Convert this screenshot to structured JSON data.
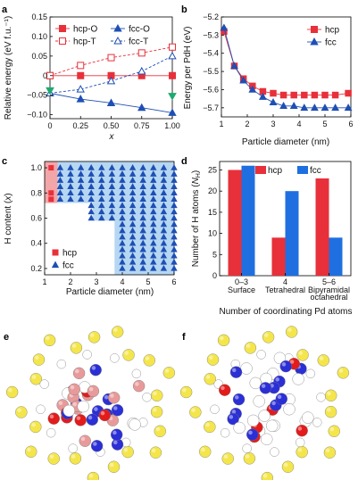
{
  "chart_data": [
    {
      "id": "a",
      "type": "line",
      "panel_label": "a",
      "xlabel": "x",
      "ylabel": "Relative energy (eV f.u.⁻¹)",
      "xlim": [
        0,
        1
      ],
      "ylim": [
        -0.11,
        0.15
      ],
      "xticks": [
        0,
        0.25,
        0.5,
        0.75,
        1.0
      ],
      "xtick_labels": [
        "0",
        "0.25",
        "0.50",
        "0.75",
        "1.00"
      ],
      "yticks": [
        -0.1,
        -0.05,
        0,
        0.05,
        0.1,
        0.15
      ],
      "ytick_labels": [
        "−0.10",
        "−0.05",
        "0",
        "0.05",
        "0.10",
        "0.15"
      ],
      "legend_location": "top",
      "series": [
        {
          "name": "hcp-O",
          "color": "#e8303a",
          "marker": "square",
          "filled": true,
          "line": "solid",
          "x": [
            0,
            0.25,
            0.5,
            0.75,
            1.0
          ],
          "y": [
            0,
            0,
            0,
            0,
            0
          ]
        },
        {
          "name": "hcp-T",
          "color": "#e8303a",
          "marker": "square",
          "filled": false,
          "line": "dashed",
          "x": [
            0,
            0.25,
            0.5,
            0.75,
            1.0
          ],
          "y": [
            0,
            0.026,
            0.046,
            0.058,
            0.073
          ]
        },
        {
          "name": "fcc-O",
          "color": "#1f4fb5",
          "marker": "triangle",
          "filled": true,
          "line": "solid",
          "x": [
            0,
            0.25,
            0.5,
            0.75,
            1.0
          ],
          "y": [
            -0.045,
            -0.06,
            -0.07,
            -0.082,
            -0.095
          ]
        },
        {
          "name": "fcc-T",
          "color": "#1f4fb5",
          "marker": "triangle",
          "filled": false,
          "line": "dashed",
          "x": [
            0,
            0.25,
            0.5,
            0.75,
            1.0
          ],
          "y": [
            -0.045,
            -0.035,
            -0.014,
            0.011,
            0.05
          ]
        }
      ],
      "extra_points": {
        "color": "#1eaa6e",
        "x": [
          0,
          1.0
        ],
        "y": [
          -0.038,
          -0.052
        ]
      }
    },
    {
      "id": "b",
      "type": "line",
      "panel_label": "b",
      "xlabel": "Particle diameter (nm)",
      "ylabel": "Energy per PdH (eV)",
      "xlim": [
        1,
        6
      ],
      "ylim": [
        -5.75,
        -5.2
      ],
      "xticks": [
        1,
        2,
        3,
        4,
        5,
        6
      ],
      "xtick_labels": [
        "1",
        "2",
        "3",
        "4",
        "5",
        "6"
      ],
      "yticks": [
        -5.7,
        -5.6,
        -5.5,
        -5.4,
        -5.3,
        -5.2
      ],
      "ytick_labels": [
        "−5.7",
        "−5.6",
        "−5.5",
        "−5.4",
        "−5.3",
        "−5.2"
      ],
      "legend_location": "top-right",
      "series": [
        {
          "name": "hcp",
          "color": "#e8303a",
          "marker": "square",
          "x": [
            1.1,
            1.5,
            1.85,
            2.2,
            2.6,
            3.0,
            3.4,
            3.8,
            4.2,
            4.6,
            5.0,
            5.4,
            5.9
          ],
          "y": [
            -5.28,
            -5.47,
            -5.54,
            -5.58,
            -5.61,
            -5.62,
            -5.63,
            -5.63,
            -5.63,
            -5.63,
            -5.63,
            -5.63,
            -5.62
          ]
        },
        {
          "name": "fcc",
          "color": "#1f4fb5",
          "marker": "triangle",
          "x": [
            1.1,
            1.5,
            1.85,
            2.2,
            2.6,
            3.0,
            3.4,
            3.8,
            4.2,
            4.6,
            5.0,
            5.4,
            5.9
          ],
          "y": [
            -5.26,
            -5.47,
            -5.55,
            -5.6,
            -5.64,
            -5.67,
            -5.69,
            -5.69,
            -5.7,
            -5.7,
            -5.7,
            -5.7,
            -5.7
          ]
        }
      ]
    },
    {
      "id": "c",
      "type": "scatter",
      "panel_label": "c",
      "xlabel": "Particle diameter (nm)",
      "ylabel": "H content (x)",
      "xlim": [
        1,
        6
      ],
      "ylim": [
        0.15,
        1.05
      ],
      "xticks": [
        1,
        2,
        3,
        4,
        5,
        6
      ],
      "xtick_labels": [
        "1",
        "2",
        "3",
        "4",
        "5",
        "6"
      ],
      "yticks": [
        0.2,
        0.4,
        0.6,
        0.8,
        1.0
      ],
      "ytick_labels": [
        "0.2",
        "0.4",
        "0.6",
        "0.8",
        "1.0"
      ],
      "legend_location": "bottom-left",
      "series": [
        {
          "name": "hcp",
          "color": "#e8303a",
          "marker": "square",
          "x": [
            1.25,
            1.25,
            1.25
          ],
          "y": [
            1.0,
            0.8,
            0.75
          ]
        },
        {
          "name": "fcc",
          "color": "#1f4fb5",
          "marker": "triangle",
          "x_grid": [
            1.6,
            2.0,
            2.4,
            2.8,
            3.2,
            3.6,
            4.0,
            4.4,
            4.8,
            5.2,
            5.6,
            6.0
          ],
          "y_grid": [
            0.2,
            0.25,
            0.3,
            0.35,
            0.4,
            0.45,
            0.5,
            0.55,
            0.6,
            0.65,
            0.7,
            0.75,
            0.8,
            0.85,
            0.9,
            0.95,
            1.0
          ],
          "region_note": "fcc stable for y >= 0.75 at d >= 1.6; y >= 0.6 at d >= 2.8; y >= 0.2 at d >= 4.0"
        }
      ],
      "regions": [
        {
          "phase": "hcp",
          "color": "#f2a6a8",
          "x": [
            1.0,
            1.5
          ],
          "y": [
            0.72,
            1.05
          ]
        },
        {
          "phase": "fcc",
          "color": "#b6d7f2",
          "x": [
            1.5,
            6.0
          ],
          "y": [
            0.72,
            1.05
          ]
        },
        {
          "phase": "fcc",
          "color": "#b6d7f2",
          "x": [
            2.85,
            6.0
          ],
          "y": [
            0.58,
            0.72
          ]
        },
        {
          "phase": "fcc",
          "color": "#b6d7f2",
          "x": [
            3.7,
            6.0
          ],
          "y": [
            0.15,
            0.58
          ]
        }
      ]
    },
    {
      "id": "d",
      "type": "bar",
      "panel_label": "d",
      "xlabel": "Number of coordinating Pd atoms",
      "ylabel": "Number of H atoms (N_H)",
      "ylim": [
        0,
        27
      ],
      "yticks": [
        0,
        5,
        10,
        15,
        20,
        25
      ],
      "ytick_labels": [
        "0",
        "5",
        "10",
        "15",
        "20",
        "25"
      ],
      "legend_location": "top",
      "categories": [
        "0–3",
        "4",
        "5–6"
      ],
      "category_sublabels": [
        [
          "Surface"
        ],
        [
          "Tetrahedral"
        ],
        [
          "Bipyramidal",
          "octahedral"
        ]
      ],
      "series": [
        {
          "name": "hcp",
          "color": "#e8303a",
          "values": [
            25,
            9,
            23
          ]
        },
        {
          "name": "fcc",
          "color": "#1f6fe0",
          "values": [
            26,
            20,
            9
          ]
        }
      ]
    }
  ],
  "panels": {
    "e": {
      "label": "e"
    },
    "f": {
      "label": "f"
    }
  },
  "atom_colors": {
    "pd_yellow": "#f4e64a",
    "h_red": "#e31b1b",
    "h_blue": "#2b2fd6",
    "h_pink": "#e89a9a",
    "white": "#ffffff"
  }
}
